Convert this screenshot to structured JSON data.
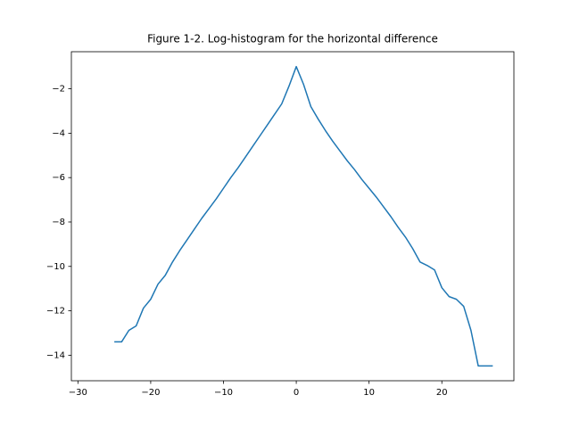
{
  "chart_data": {
    "type": "line",
    "title": "Figure 1-2. Log-histogram for the horizontal difference",
    "x": [
      -25,
      -24,
      -23,
      -22,
      -21,
      -20,
      -19,
      -18,
      -17,
      -16,
      -15,
      -14,
      -13,
      -12,
      -11,
      -10,
      -9,
      -8,
      -7,
      -6,
      -5,
      -4,
      -3,
      -2,
      -1,
      0,
      1,
      2,
      3,
      4,
      5,
      6,
      7,
      8,
      9,
      10,
      11,
      12,
      13,
      14,
      15,
      16,
      17,
      18,
      19,
      20,
      21,
      22,
      23,
      24,
      25,
      26,
      27
    ],
    "values": [
      -13.4,
      -13.4,
      -12.88,
      -12.68,
      -11.88,
      -11.48,
      -10.8,
      -10.4,
      -9.8,
      -9.28,
      -8.8,
      -8.32,
      -7.84,
      -7.4,
      -6.96,
      -6.48,
      -6.0,
      -5.56,
      -5.08,
      -4.6,
      -4.12,
      -3.64,
      -3.16,
      -2.68,
      -1.88,
      -1.0,
      -1.8,
      -2.8,
      -3.36,
      -3.88,
      -4.36,
      -4.8,
      -5.24,
      -5.64,
      -6.08,
      -6.48,
      -6.88,
      -7.32,
      -7.76,
      -8.24,
      -8.68,
      -9.2,
      -9.8,
      -9.96,
      -10.16,
      -10.96,
      -11.36,
      -11.48,
      -11.8,
      -12.88,
      -14.48,
      -14.48,
      -14.48
    ],
    "color": "#1f77b4",
    "xlim": [
      -30.9,
      29.9
    ],
    "ylim": [
      -15.15,
      -0.33
    ],
    "xticks": [
      {
        "value": -30,
        "label": "−30"
      },
      {
        "value": -20,
        "label": "−20"
      },
      {
        "value": -10,
        "label": "−10"
      },
      0,
      10,
      20
    ],
    "yticks": [
      {
        "value": -14,
        "label": "−14"
      },
      {
        "value": -12,
        "label": "−12"
      },
      {
        "value": -10,
        "label": "−10"
      },
      {
        "value": -8,
        "label": "−8"
      },
      {
        "value": -6,
        "label": "−6"
      },
      {
        "value": -4,
        "label": "−4"
      },
      {
        "value": -2,
        "label": "−2"
      }
    ]
  }
}
